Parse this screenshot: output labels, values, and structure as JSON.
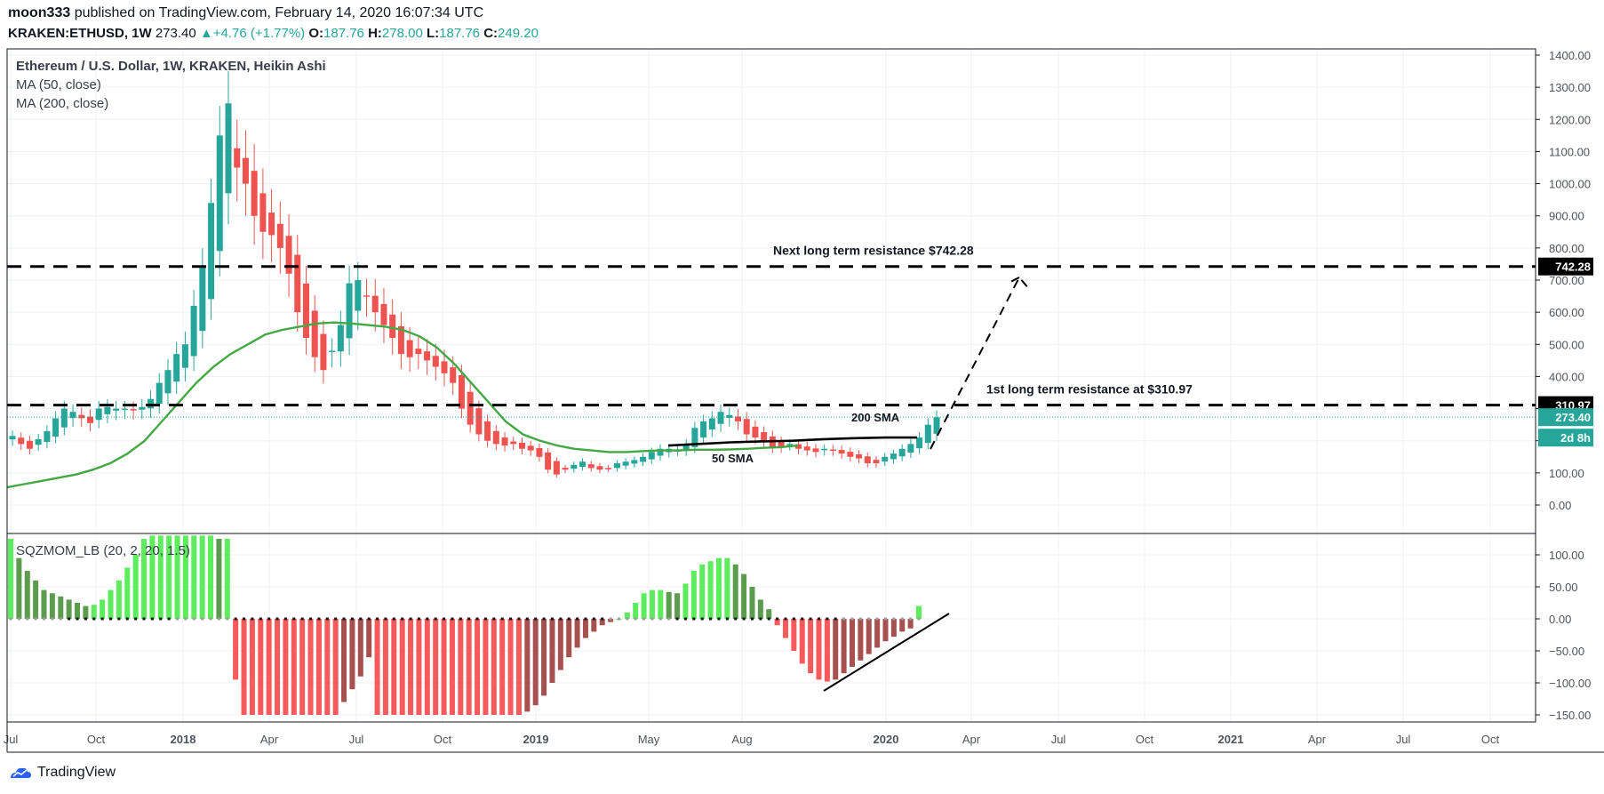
{
  "header": {
    "author": "moon333",
    "published_text": "published on TradingView.com, February 14, 2020 16:07:34 UTC",
    "symbol": "KRAKEN:ETHUSD, 1W",
    "last": "273.40",
    "change_arrow": "▲",
    "change": "+4.76 (+1.77%)",
    "o_label": "O:",
    "o_value": "187.76",
    "h_label": "H:",
    "h_value": "278.00",
    "l_label": "L:",
    "l_value": "187.76",
    "c_label": "C:",
    "c_value": "249.20"
  },
  "legend": {
    "title": "Ethereum / U.S. Dollar, 1W, KRAKEN, Heikin Ashi",
    "ma50": "MA (50, close)",
    "ma200": "MA (200, close)",
    "sqz": "SQZMOM_LB (20, 2, 20, 1.5)"
  },
  "brand": "TradingView",
  "colors": {
    "up": "#26a69a",
    "down": "#ef5350",
    "ma": "#43a843",
    "current_line": "#26a69a",
    "mom_up_bright": "#5dec5d",
    "mom_up_dark": "#5b9c4f",
    "mom_down_bright": "#f75a5a",
    "mom_down_dark": "#a6514f"
  },
  "chart_data": {
    "type": "candlestick",
    "price_axis": {
      "ticks": [
        "1400.00",
        "1300.00",
        "1200.00",
        "1100.00",
        "1000.00",
        "900.00",
        "800.00",
        "700.00",
        "600.00",
        "500.00",
        "400.00",
        "300.00",
        "200.00",
        "100.00",
        "0.00"
      ],
      "range": [
        -85,
        1415
      ]
    },
    "momentum_axis": {
      "ticks": [
        "100.00",
        "50.00",
        "0.00",
        "−50.00",
        "−100.00",
        "−150.00"
      ],
      "range": [
        -162,
        132
      ]
    },
    "time_axis": [
      "Jul",
      "Oct",
      "2018",
      "Apr",
      "Jul",
      "Oct",
      "2019",
      "May",
      "Aug",
      "2020",
      "Apr",
      "Jul",
      "Oct",
      "2021",
      "Apr",
      "Jul",
      "Oct"
    ],
    "bold_time_labels": [
      "2018",
      "2019",
      "2020",
      "2021"
    ],
    "price_badges": [
      {
        "label": "742.28",
        "style": "resistance"
      },
      {
        "label": "310.97",
        "style": "resistance"
      },
      {
        "label": "273.40",
        "style": "current"
      },
      {
        "label": "2d 8h",
        "style": "countdown"
      }
    ],
    "resistance_levels": [
      {
        "value": 742.28,
        "label": "Next long term resistance $742.28"
      },
      {
        "value": 310.97,
        "label": "1st long term resistance at $310.97"
      }
    ],
    "current_price": 273.4,
    "annotations": [
      "200 SMA",
      "50 SMA"
    ],
    "weekly_close": [
      215,
      190,
      175,
      205,
      230,
      270,
      300,
      290,
      270,
      255,
      300,
      305,
      300,
      300,
      295,
      305,
      330,
      380,
      420,
      470,
      500,
      620,
      740,
      940,
      1150,
      1250,
      1050,
      1000,
      900,
      850,
      840,
      800,
      720,
      600,
      520,
      460,
      420,
      480,
      560,
      690,
      700,
      650,
      600,
      560,
      520,
      470,
      460,
      470,
      450,
      430,
      410,
      380,
      300,
      250,
      220,
      200,
      190,
      185,
      190,
      175,
      170,
      150,
      110,
      95,
      110,
      125,
      135,
      115,
      110,
      115,
      130,
      135,
      140,
      150,
      165,
      175,
      175,
      170,
      190,
      240,
      260,
      270,
      290,
      280,
      260,
      220,
      210,
      200,
      180,
      180,
      190,
      175,
      170,
      165,
      175,
      170,
      160,
      150,
      145,
      130,
      130,
      150,
      160,
      175,
      190,
      210,
      250,
      273
    ],
    "ma50": [
      55,
      65,
      75,
      85,
      95,
      110,
      130,
      160,
      200,
      260,
      320,
      380,
      430,
      470,
      500,
      530,
      545,
      555,
      565,
      568,
      565,
      560,
      555,
      545,
      525,
      490,
      440,
      380,
      320,
      260,
      220,
      200,
      185,
      175,
      170,
      165,
      165,
      168,
      170,
      170,
      172,
      172,
      173,
      175,
      178,
      180,
      185
    ],
    "ma200_segment": [
      185,
      190,
      195,
      198,
      200,
      205,
      208,
      210,
      210
    ],
    "momentum": [
      125,
      95,
      75,
      60,
      45,
      40,
      35,
      30,
      25,
      20,
      22,
      30,
      45,
      60,
      80,
      100,
      125,
      130,
      130,
      130,
      130,
      130,
      130,
      130,
      130,
      125,
      125,
      -95,
      -150,
      -150,
      -150,
      -150,
      -150,
      -150,
      -150,
      -150,
      -150,
      -150,
      -150,
      -150,
      -130,
      -110,
      -90,
      -60,
      -150,
      -150,
      -150,
      -150,
      -150,
      -150,
      -150,
      -150,
      -150,
      -150,
      -150,
      -150,
      -150,
      -150,
      -150,
      -150,
      -150,
      -150,
      -145,
      -135,
      -120,
      -100,
      -80,
      -60,
      -45,
      -30,
      -20,
      -10,
      -5,
      0,
      10,
      25,
      40,
      45,
      45,
      42,
      40,
      55,
      75,
      85,
      90,
      95,
      95,
      85,
      70,
      50,
      30,
      15,
      -10,
      -30,
      -50,
      -70,
      -85,
      -95,
      -98,
      -95,
      -85,
      -75,
      -65,
      -55,
      -45,
      -35,
      -28,
      -20,
      -15,
      20
    ],
    "trendlines": [
      "projection to ~700",
      "rising momentum lows"
    ]
  }
}
